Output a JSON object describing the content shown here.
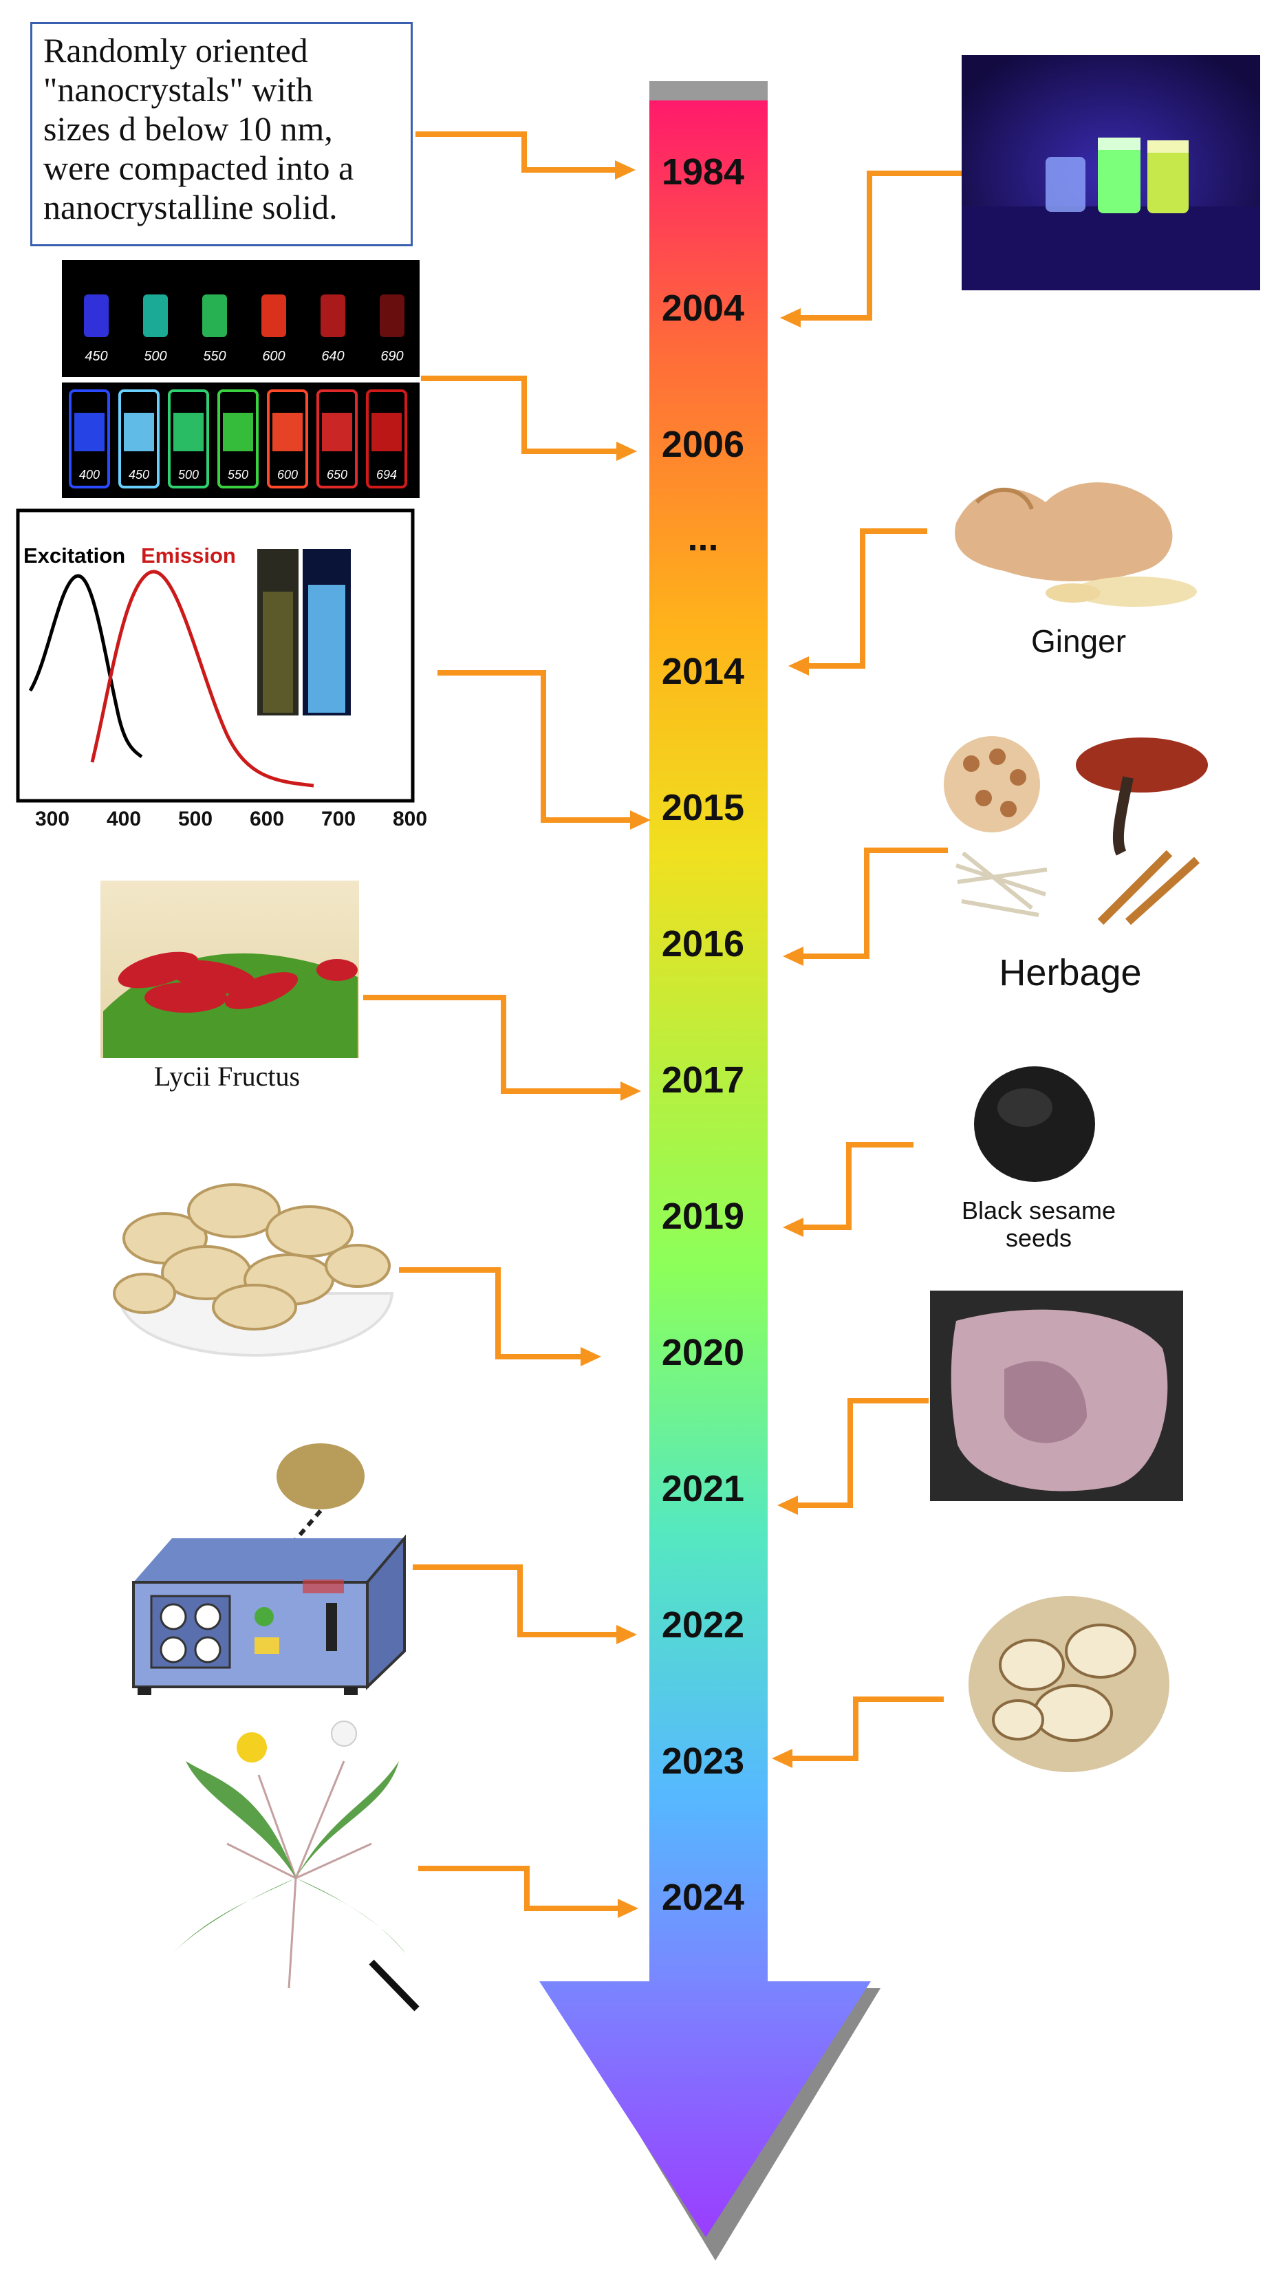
{
  "text_box": {
    "lines": [
      "Randomly oriented",
      "\"nanocrystals\" with",
      "sizes d below 10 nm,",
      "were compacted into a",
      "nanocrystalline solid."
    ]
  },
  "timeline": {
    "years": [
      "1984",
      "2004",
      "2006",
      "...",
      "2014",
      "2015",
      "2016",
      "2017",
      "2019",
      "2020",
      "2021",
      "2022",
      "2023",
      "2024"
    ]
  },
  "spectrum_plot": {
    "legend_excitation": "Excitation",
    "legend_emission": "Emission",
    "x_ticks": [
      "300",
      "400",
      "500",
      "600",
      "700",
      "800"
    ]
  },
  "vials_top_labels": [
    "450",
    "500",
    "550",
    "600",
    "640",
    "690"
  ],
  "vials_bottom_labels": [
    "400",
    "450",
    "500",
    "550",
    "600",
    "650",
    "694"
  ],
  "captions": {
    "ginger": "Ginger",
    "herbage": "Herbage",
    "lycii": "Lycii Fructus",
    "sesame_line1": "Black sesame",
    "sesame_line2": "seeds"
  },
  "colors": {
    "arrow": "#f7941d",
    "timeline_top": "#ff1a6c",
    "timeline_mid": "#8cff5a",
    "timeline_bottom": "#8a4dff",
    "text_box_border": "#3a5fb0",
    "emission_label": "#cc1a1a"
  }
}
